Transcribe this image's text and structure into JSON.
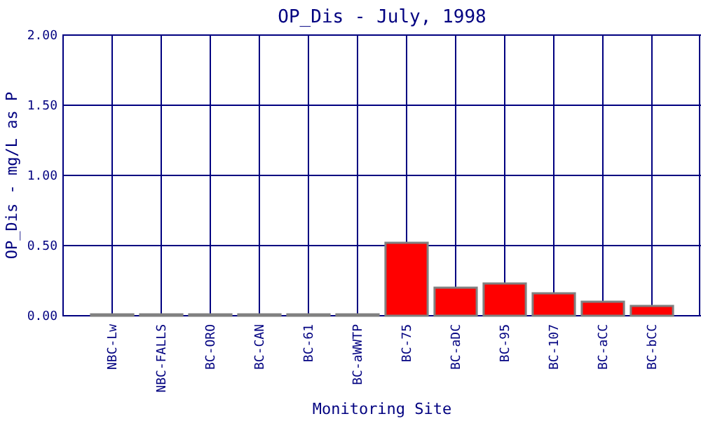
{
  "chart_data": {
    "type": "bar",
    "title": "OP_Dis - July, 1998",
    "xlabel": "Monitoring Site",
    "ylabel": "OP_Dis - mg/L as P",
    "categories": [
      "NBC-Lw",
      "NBC-FALLS",
      "BC-ORO",
      "BC-CAN",
      "BC-61",
      "BC-aWWTP",
      "BC-75",
      "BC-aDC",
      "BC-95",
      "BC-107",
      "BC-aCC",
      "BC-bCC"
    ],
    "values": [
      0,
      0,
      0,
      0,
      0,
      0,
      0.52,
      0.2,
      0.23,
      0.16,
      0.1,
      0.07
    ],
    "color": "#ff0000",
    "ylim": [
      0,
      2
    ],
    "yticks": [
      {
        "value": 0,
        "label": "0.00"
      },
      {
        "value": 0.5,
        "label": "0.50"
      },
      {
        "value": 1,
        "label": "1.00"
      },
      {
        "value": 1.5,
        "label": "1.50"
      },
      {
        "value": 2,
        "label": "2.00"
      }
    ],
    "grid": true
  }
}
